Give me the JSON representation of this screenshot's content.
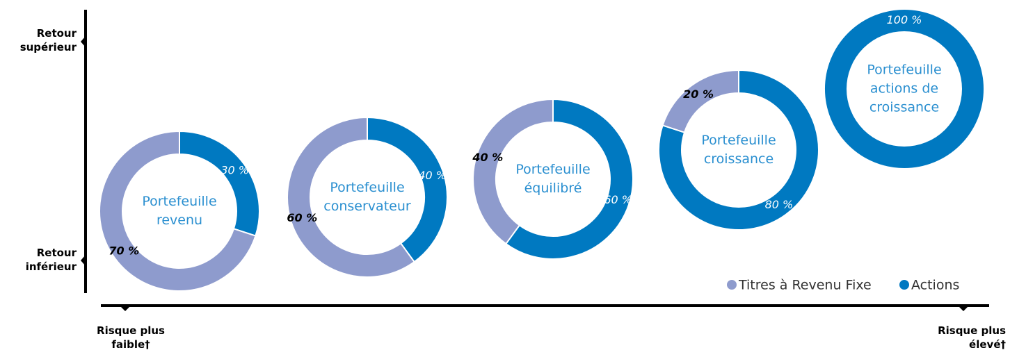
{
  "axis_labels": {
    "y_top": "Retour supérieur",
    "y_bottom": "Retour inférieur",
    "x_left": "Risque plus faible†",
    "x_right": "Risque plus élevé†"
  },
  "legend": {
    "labels": [
      "Titres à Revenu Fixe",
      "Actions"
    ],
    "colors": [
      "#8e9bcd",
      "#0079c1"
    ]
  },
  "chart_data": [
    {
      "type": "pie",
      "title": "Portefeuille revenu",
      "values": [
        70,
        30
      ],
      "value_labels": [
        "70 %",
        "30 %"
      ]
    },
    {
      "type": "pie",
      "title": "Portefeuille conservateur",
      "values": [
        60,
        40
      ],
      "value_labels": [
        "60 %",
        "40 %"
      ]
    },
    {
      "type": "pie",
      "title": "Portefeuille équilibré",
      "values": [
        40,
        60
      ],
      "value_labels": [
        "40 %",
        "60 %"
      ]
    },
    {
      "type": "pie",
      "title": "Portefeuille croissance",
      "values": [
        20,
        80
      ],
      "value_labels": [
        "20 %",
        "80 %"
      ]
    },
    {
      "type": "pie",
      "title": "Portefeuille actions de croissance",
      "values": [
        0,
        100
      ],
      "value_labels": [
        null,
        "100 %"
      ]
    }
  ]
}
